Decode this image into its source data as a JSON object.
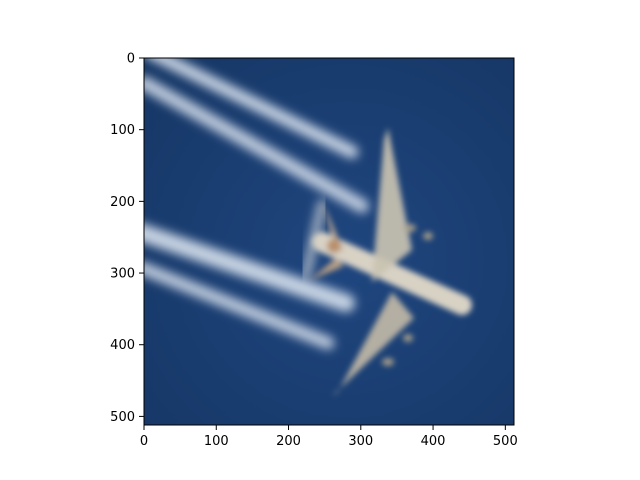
{
  "figure": {
    "background_color": "#ffffff",
    "description_colors": {
      "sky": "#1d3f73",
      "contrail": "#d9e2ee",
      "plane_body": "#d7d2c6",
      "plane_accent": "#b88f6c"
    }
  },
  "axes": {
    "x_ticks": [
      {
        "value": 0,
        "label": "0"
      },
      {
        "value": 100,
        "label": "100"
      },
      {
        "value": 200,
        "label": "200"
      },
      {
        "value": 300,
        "label": "300"
      },
      {
        "value": 400,
        "label": "400"
      },
      {
        "value": 500,
        "label": "500"
      }
    ],
    "y_ticks": [
      {
        "value": 0,
        "label": "0"
      },
      {
        "value": 100,
        "label": "100"
      },
      {
        "value": 200,
        "label": "200"
      },
      {
        "value": 300,
        "label": "300"
      },
      {
        "value": 400,
        "label": "400"
      },
      {
        "value": 500,
        "label": "500"
      }
    ],
    "x_range": [
      0,
      512
    ],
    "y_range": [
      0,
      512
    ],
    "y_inverted": true,
    "grid": false
  }
}
